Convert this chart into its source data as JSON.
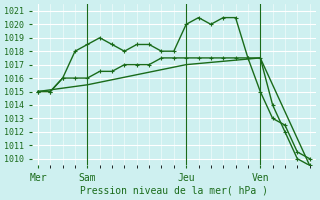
{
  "bg_color": "#cef0f0",
  "grid_color": "#ffffff",
  "line_color": "#1a6b1a",
  "marker_color": "#1a6b1a",
  "xlabel": "Pression niveau de la mer( hPa )",
  "xlabel_color": "#1a6b1a",
  "yticks": [
    1010,
    1011,
    1012,
    1013,
    1014,
    1015,
    1016,
    1017,
    1018,
    1019,
    1020,
    1021
  ],
  "ylim": [
    1009.5,
    1021.5
  ],
  "day_labels": [
    "Mer",
    "Sam",
    "Jeu",
    "Ven"
  ],
  "day_positions": [
    0,
    4,
    12,
    18
  ],
  "vline_positions": [
    4,
    12,
    18
  ],
  "series1_x": [
    0,
    1,
    2,
    3,
    4,
    5,
    6,
    7,
    8,
    9,
    10,
    11,
    12,
    13,
    14,
    15,
    16,
    17,
    18,
    19,
    20,
    21,
    22
  ],
  "series1_y": [
    1015,
    1015,
    1016,
    1018,
    1018.5,
    1019,
    1018.5,
    1018,
    1018.5,
    1018.5,
    1018,
    1018,
    1020,
    1020.5,
    1020,
    1020.5,
    1020.5,
    1017.5,
    1015,
    1013,
    1012.5,
    1010.5,
    1010
  ],
  "series2_x": [
    0,
    1,
    2,
    3,
    4,
    5,
    6,
    7,
    8,
    9,
    10,
    11,
    12,
    13,
    14,
    15,
    16,
    17,
    18,
    19,
    20,
    21,
    22
  ],
  "series2_y": [
    1015,
    1015,
    1016,
    1016,
    1016,
    1016.5,
    1016.5,
    1017,
    1017,
    1017,
    1017.5,
    1017.5,
    1017.5,
    1017.5,
    1017.5,
    1017.5,
    1017.5,
    1017.5,
    1017.5,
    1014,
    1012,
    1010,
    1009.5
  ],
  "series3_x": [
    0,
    4,
    12,
    18,
    22
  ],
  "series3_y": [
    1015,
    1015.5,
    1017,
    1017.5,
    1009.5
  ]
}
